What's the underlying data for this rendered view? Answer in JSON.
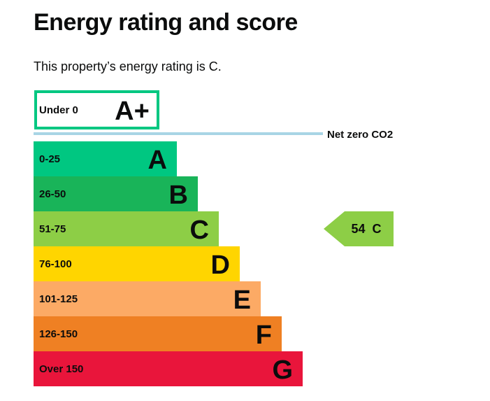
{
  "page": {
    "title": "Energy rating and score",
    "intro": "This property’s energy rating is C."
  },
  "chart_data": {
    "type": "bar",
    "bands": [
      {
        "range": "Under 0",
        "letter": "A+",
        "color": "#ffffff",
        "border": "#00c781"
      },
      {
        "range": "0-25",
        "letter": "A",
        "color": "#00c781"
      },
      {
        "range": "26-50",
        "letter": "B",
        "color": "#19b459"
      },
      {
        "range": "51-75",
        "letter": "C",
        "color": "#8dce46"
      },
      {
        "range": "76-100",
        "letter": "D",
        "color": "#ffd500"
      },
      {
        "range": "101-125",
        "letter": "E",
        "color": "#fcaa65"
      },
      {
        "range": "126-150",
        "letter": "F",
        "color": "#ef8023"
      },
      {
        "range": "Over 150",
        "letter": "G",
        "color": "#e9153b"
      }
    ],
    "net_zero_label": "Net zero CO2",
    "net_zero_line_color": "#a8d5e5",
    "current": {
      "score": 54,
      "band": "C",
      "label": "54  C",
      "color": "#8dce46"
    }
  }
}
